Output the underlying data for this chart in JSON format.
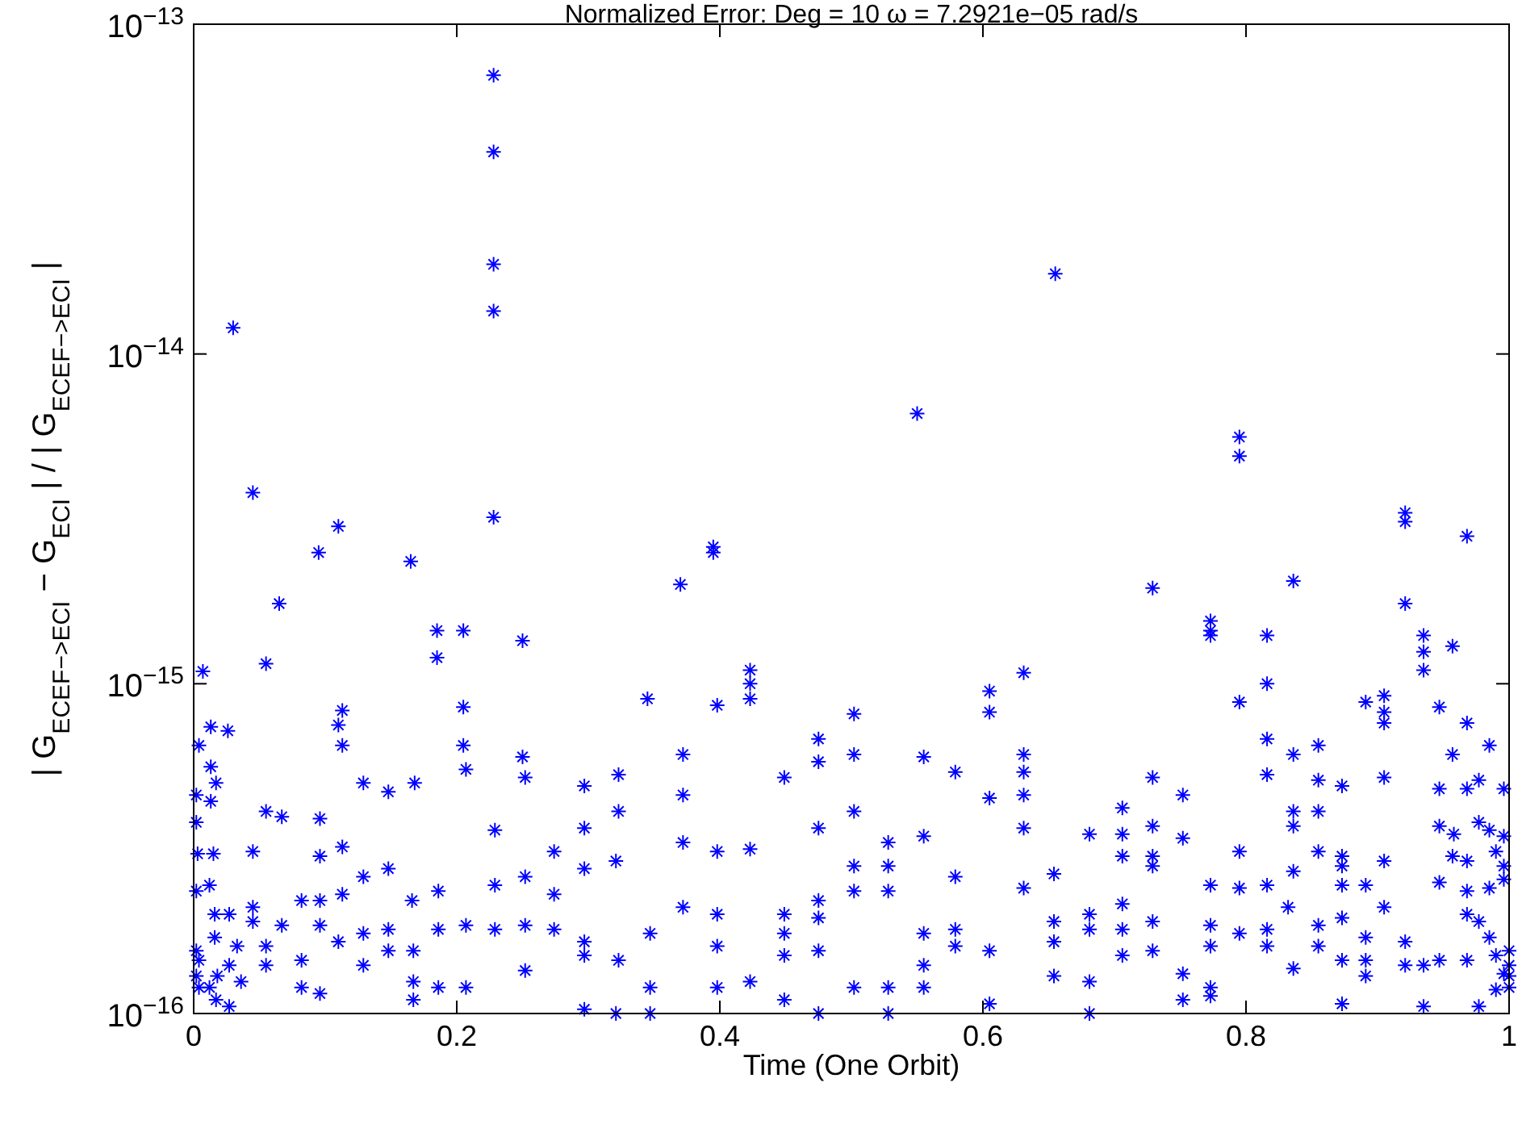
{
  "chart_data": {
    "type": "scatter",
    "title": "Normalized Error: Deg = 10 ω = 7.2921e−05 rad/s",
    "xlabel": "Time (One Orbit)",
    "ylabel": "| G$_{ECEF−>ECI}$ − G$_{ECI}$ | / | G$_{ECEF−>ECI}$ |",
    "log": "y",
    "grid": false,
    "marker": "cross",
    "xlim": [
      0,
      1
    ],
    "xticks": [
      0,
      0.2,
      0.4,
      0.6,
      0.8,
      1
    ],
    "ylim": [
      1e-16,
      1e-13
    ],
    "yticks": [
      {
        "value": 1e-16,
        "label": "10$^{−16}$"
      },
      {
        "value": 1e-15,
        "label": "10$^{−15}$"
      },
      {
        "value": 1e-14,
        "label": "10$^{−14}$"
      },
      {
        "value": 1e-13,
        "label": "10$^{−13}$"
      }
    ],
    "series": [
      {
        "color": "#0000ff",
        "x": [
          0.03,
          0.045,
          0.055,
          0.065,
          0.095,
          0.11,
          0.11,
          0.165,
          0.185,
          0.185,
          0.205,
          0.205,
          0.205,
          0.228,
          0.228,
          0.228,
          0.228,
          0.228,
          0.25,
          0.25,
          0.345,
          0.37,
          0.395,
          0.395,
          0.398,
          0.423,
          0.423,
          0.423,
          0.55,
          0.655,
          0.795,
          0.795,
          0.007,
          0.113,
          0.013,
          0.026,
          0.004,
          0.113,
          0.013,
          0.017,
          0.002,
          0.013,
          0.129,
          0.148,
          0.168,
          0.207,
          0.252,
          0.297,
          0.323,
          0.002,
          0.055,
          0.067,
          0.096,
          0.323,
          0.229,
          0.297,
          0.003,
          0.015,
          0.045,
          0.096,
          0.113,
          0.274,
          0.321,
          0.129,
          0.148,
          0.229,
          0.252,
          0.297,
          0.002,
          0.012,
          0.016,
          0.027,
          0.045,
          0.082,
          0.096,
          0.113,
          0.166,
          0.186,
          0.274,
          0.045,
          0.067,
          0.096,
          0.129,
          0.148,
          0.186,
          0.207,
          0.229,
          0.252,
          0.274,
          0.297,
          0.323,
          0.002,
          0.016,
          0.033,
          0.055,
          0.004,
          0.027,
          0.055,
          0.082,
          0.11,
          0.148,
          0.167,
          0.129,
          0.297,
          0.252,
          0.002,
          0.018,
          0.036,
          0.004,
          0.012,
          0.017,
          0.027,
          0.082,
          0.096,
          0.167,
          0.167,
          0.186,
          0.207,
          0.297,
          0.321,
          0.475,
          0.475,
          0.502,
          0.502,
          0.555,
          0.579,
          0.605,
          0.605,
          0.631,
          0.631,
          0.631,
          0.605,
          0.631,
          0.631,
          0.449,
          0.372,
          0.372,
          0.372,
          0.398,
          0.423,
          0.475,
          0.502,
          0.502,
          0.502,
          0.528,
          0.528,
          0.528,
          0.555,
          0.579,
          0.631,
          0.654,
          0.372,
          0.398,
          0.449,
          0.475,
          0.347,
          0.398,
          0.449,
          0.449,
          0.475,
          0.475,
          0.555,
          0.555,
          0.579,
          0.579,
          0.605,
          0.654,
          0.654,
          0.654,
          0.347,
          0.347,
          0.398,
          0.423,
          0.449,
          0.475,
          0.502,
          0.528,
          0.528,
          0.555,
          0.605,
          0.921,
          0.921,
          0.968,
          0.836,
          0.729,
          0.773,
          0.773,
          0.773,
          0.816,
          0.816,
          0.921,
          0.957,
          0.935,
          0.935,
          0.935,
          0.947,
          0.968,
          0.795,
          0.891,
          0.905,
          0.905,
          0.905,
          0.816,
          0.836,
          0.855,
          0.957,
          0.985,
          0.729,
          0.816,
          0.855,
          0.873,
          0.905,
          0.947,
          0.968,
          0.977,
          0.996,
          0.752,
          0.706,
          0.836,
          0.855,
          0.681,
          0.706,
          0.729,
          0.752,
          0.836,
          0.947,
          0.958,
          0.977,
          0.985,
          0.996,
          0.706,
          0.729,
          0.729,
          0.795,
          0.873,
          0.873,
          0.905,
          0.957,
          0.968,
          0.99,
          0.996,
          0.836,
          0.855,
          0.773,
          0.795,
          0.816,
          0.873,
          0.891,
          0.947,
          0.968,
          0.985,
          0.996,
          0.706,
          0.832,
          0.873,
          0.905,
          0.968,
          0.977,
          0.985,
          0.681,
          0.681,
          0.706,
          0.729,
          0.773,
          0.795,
          0.816,
          0.855,
          0.891,
          0.706,
          0.729,
          0.773,
          0.816,
          0.855,
          0.921,
          0.921,
          0.935,
          0.947,
          0.968,
          0.99,
          1,
          1,
          1,
          1,
          0.681,
          0.681,
          0.752,
          0.752,
          0.773,
          0.773,
          0.836,
          0.873,
          0.873,
          0.891,
          0.891,
          0.935,
          0.977,
          0.99,
          0.996
        ],
        "values": [
          1.2e-14,
          3.8e-15,
          1.15e-15,
          1.75e-15,
          2.5e-15,
          3e-15,
          7.5e-16,
          2.35e-15,
          1.45e-15,
          1.2e-15,
          1.45e-15,
          8.5e-16,
          6.5e-16,
          7e-14,
          4.1e-14,
          1.87e-14,
          1.35e-14,
          3.2e-15,
          1.35e-15,
          6e-16,
          9e-16,
          2e-15,
          2.6e-15,
          2.5e-15,
          8.6e-16,
          1.1e-15,
          1e-15,
          9e-16,
          6.6e-15,
          1.75e-14,
          5.6e-15,
          4.9e-15,
          1.09e-15,
          8.3e-16,
          7.4e-16,
          7.2e-16,
          6.5e-16,
          6.5e-16,
          5.6e-16,
          5e-16,
          4.6e-16,
          4.4e-16,
          5e-16,
          4.7e-16,
          5e-16,
          5.5e-16,
          5.2e-16,
          4.9e-16,
          5.3e-16,
          3.8e-16,
          4.1e-16,
          3.95e-16,
          3.9e-16,
          4.1e-16,
          3.6e-16,
          3.65e-16,
          3.05e-16,
          3.05e-16,
          3.1e-16,
          3e-16,
          3.2e-16,
          3.1e-16,
          2.9e-16,
          2.6e-16,
          2.75e-16,
          2.45e-16,
          2.6e-16,
          2.75e-16,
          2.35e-16,
          2.45e-16,
          2e-16,
          2e-16,
          2.1e-16,
          2.2e-16,
          2.2e-16,
          2.3e-16,
          2.2e-16,
          2.35e-16,
          2.3e-16,
          1.9e-16,
          1.85e-16,
          1.85e-16,
          1.75e-16,
          1.8e-16,
          1.8e-16,
          1.85e-16,
          1.8e-16,
          1.85e-16,
          1.8e-16,
          1.65e-16,
          1.45e-16,
          1.55e-16,
          1.7e-16,
          1.6e-16,
          1.6e-16,
          1.45e-16,
          1.4e-16,
          1.4e-16,
          1.45e-16,
          1.65e-16,
          1.55e-16,
          1.55e-16,
          1.4e-16,
          1.5e-16,
          1.35e-16,
          1.3e-16,
          1.3e-16,
          1.25e-16,
          1.2e-16,
          1.2e-16,
          1.1e-16,
          1.05e-16,
          1.2e-16,
          1.15e-16,
          1.25e-16,
          1.1e-16,
          1.2e-16,
          1.2e-16,
          1.03e-16,
          1e-16,
          6.8e-16,
          5.8e-16,
          8.1e-16,
          6.1e-16,
          6e-16,
          5.4e-16,
          9.5e-16,
          8.2e-16,
          1.08e-15,
          6.1e-16,
          5.4e-16,
          4.5e-16,
          4.6e-16,
          3.65e-16,
          5.2e-16,
          6.1e-16,
          4.6e-16,
          3.3e-16,
          3.1e-16,
          3.15e-16,
          3.65e-16,
          4.1e-16,
          2.8e-16,
          2.35e-16,
          3.3e-16,
          2.8e-16,
          2.35e-16,
          3.45e-16,
          2.6e-16,
          2.4e-16,
          2.65e-16,
          2.1e-16,
          2e-16,
          2e-16,
          2.2e-16,
          1.75e-16,
          1.6e-16,
          1.75e-16,
          1.5e-16,
          1.95e-16,
          1.55e-16,
          1.75e-16,
          1.4e-16,
          1.8e-16,
          1.6e-16,
          1.55e-16,
          1.9e-16,
          1.65e-16,
          1.3e-16,
          1.2e-16,
          1e-16,
          1.2e-16,
          1.25e-16,
          1.1e-16,
          1e-16,
          1.2e-16,
          1.2e-16,
          1e-16,
          1.2e-16,
          1.07e-16,
          3.3e-15,
          3.1e-15,
          2.8e-15,
          2.05e-15,
          1.95e-15,
          1.55e-15,
          1.45e-15,
          1.4e-15,
          1.4e-15,
          1e-15,
          1.75e-15,
          1.3e-15,
          1.4e-15,
          1.25e-15,
          1.1e-15,
          8.5e-16,
          7.6e-16,
          8.8e-16,
          8.8e-16,
          9.2e-16,
          8.2e-16,
          7.6e-16,
          6.8e-16,
          6.1e-16,
          6.5e-16,
          6.1e-16,
          6.5e-16,
          5.2e-16,
          5.3e-16,
          5.1e-16,
          4.9e-16,
          5.2e-16,
          4.8e-16,
          4.8e-16,
          5.1e-16,
          4.8e-16,
          4.6e-16,
          4.2e-16,
          4.1e-16,
          4.1e-16,
          3.5e-16,
          3.5e-16,
          3.7e-16,
          3.4e-16,
          3.7e-16,
          3.7e-16,
          3.5e-16,
          3.8e-16,
          3.6e-16,
          3.45e-16,
          3e-16,
          3e-16,
          2.8e-16,
          3.1e-16,
          3e-16,
          2.8e-16,
          2.9e-16,
          3e-16,
          2.9e-16,
          3.1e-16,
          2.8e-16,
          2.7e-16,
          3.1e-16,
          2.45e-16,
          2.4e-16,
          2.45e-16,
          2.45e-16,
          2.45e-16,
          2.5e-16,
          2.35e-16,
          2.4e-16,
          2.55e-16,
          2.15e-16,
          2.1e-16,
          1.95e-16,
          2.1e-16,
          2e-16,
          1.9e-16,
          1.7e-16,
          2e-16,
          1.8e-16,
          1.8e-16,
          1.9e-16,
          1.85e-16,
          1.75e-16,
          1.8e-16,
          1.85e-16,
          1.7e-16,
          1.5e-16,
          1.55e-16,
          1.6e-16,
          1.6e-16,
          1.6e-16,
          1.65e-16,
          1.4e-16,
          1.4e-16,
          1.45e-16,
          1.45e-16,
          1.5e-16,
          1.55e-16,
          1.4e-16,
          1.3e-16,
          1.2e-16,
          1.25e-16,
          1e-16,
          1.32e-16,
          1.1e-16,
          1.2e-16,
          1.13e-16,
          1.37e-16,
          1.45e-16,
          1.07e-16,
          1.45e-16,
          1.3e-16,
          1.05e-16,
          1.05e-16,
          1.18e-16,
          1.32e-16
        ]
      }
    ]
  }
}
